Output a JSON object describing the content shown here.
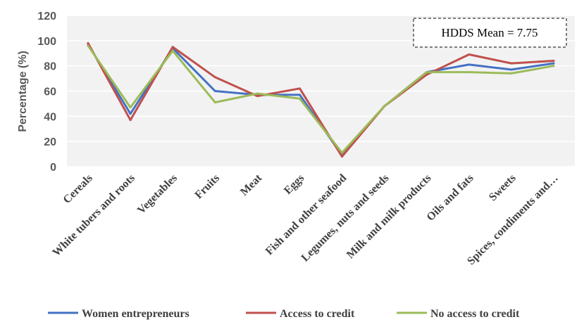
{
  "chart_data": {
    "type": "line",
    "title": "",
    "xlabel": "",
    "ylabel": "Percentage (%)",
    "ylim": [
      0,
      120
    ],
    "yticks": [
      0,
      20,
      40,
      60,
      80,
      100,
      120
    ],
    "grid": "horizontal",
    "legend_position": "bottom",
    "categories": [
      "Cereals",
      "White tubers and roots",
      "Vegetables",
      "Fruits",
      "Meat",
      "Eggs",
      "Fish and other seafood",
      "Legumes, nuts and seeds",
      "Milk and milk products",
      "Oils and fats",
      "Sweets",
      "Spices, condiments and…"
    ],
    "series": [
      {
        "name": "Women entrepreneurs",
        "color": "#4472C4",
        "values": [
          97,
          42,
          94,
          60,
          57,
          57,
          9,
          48,
          75,
          81,
          77,
          82
        ]
      },
      {
        "name": "Access to credit",
        "color": "#C0504D",
        "values": [
          98,
          37,
          95,
          71,
          56,
          62,
          8,
          48,
          73,
          89,
          82,
          84
        ]
      },
      {
        "name": "No access to credit",
        "color": "#9BBB59",
        "values": [
          96,
          47,
          92,
          51,
          58,
          54,
          11,
          48,
          75,
          75,
          74,
          80
        ]
      }
    ],
    "annotation": "HDDS Mean = 7.75"
  }
}
